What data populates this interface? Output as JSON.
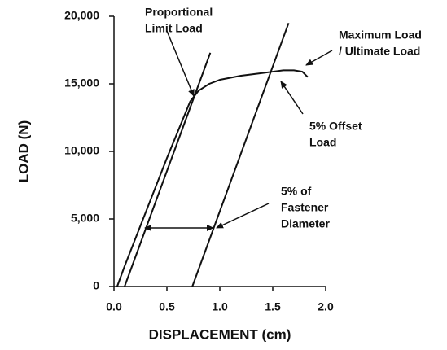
{
  "chart_data": {
    "type": "line",
    "x_label": "DISPLACEMENT (cm)",
    "y_label": "LOAD (N)",
    "xlim": [
      0,
      2
    ],
    "xticks": [
      {
        "value": 0,
        "label": "0.0"
      },
      0.5,
      {
        "value": 1,
        "label": "1.0"
      },
      1.5,
      {
        "value": 2,
        "label": "2.0"
      }
    ],
    "ylim": [
      0,
      20000
    ],
    "yticks": [
      0,
      {
        "value": 5000,
        "label": "5,000"
      },
      {
        "value": 10000,
        "label": "10,000"
      },
      {
        "value": 15000,
        "label": "15,000"
      },
      {
        "value": 20000,
        "label": "20,000"
      }
    ],
    "grid": false,
    "series": [
      {
        "color": "#111111",
        "x": [
          0.03,
          0.1,
          0.2,
          0.3,
          0.5,
          0.72,
          0.8,
          0.9,
          1.0,
          1.2,
          1.4,
          1.5,
          1.6,
          1.7,
          1.78,
          1.83
        ],
        "values": [
          0,
          1500,
          3500,
          5500,
          9500,
          13700,
          14500,
          15000,
          15300,
          15600,
          15800,
          15900,
          16000,
          16000,
          15900,
          15500
        ]
      },
      {
        "color": "#111111",
        "x": [
          0.1,
          0.91
        ],
        "values": [
          0,
          17300
        ]
      },
      {
        "color": "#111111",
        "x": [
          0.74,
          1.65
        ],
        "values": [
          0,
          19500
        ]
      }
    ],
    "annotations": [
      {
        "lines": [
          "Proportional",
          "Limit Load"
        ]
      },
      {
        "lines": [
          "Maximum Load",
          "/ Ultimate Load"
        ]
      },
      {
        "lines": [
          "5% Offset",
          "Load"
        ]
      },
      {
        "lines": [
          "5% of",
          "Fastener",
          "Diameter"
        ]
      }
    ]
  }
}
